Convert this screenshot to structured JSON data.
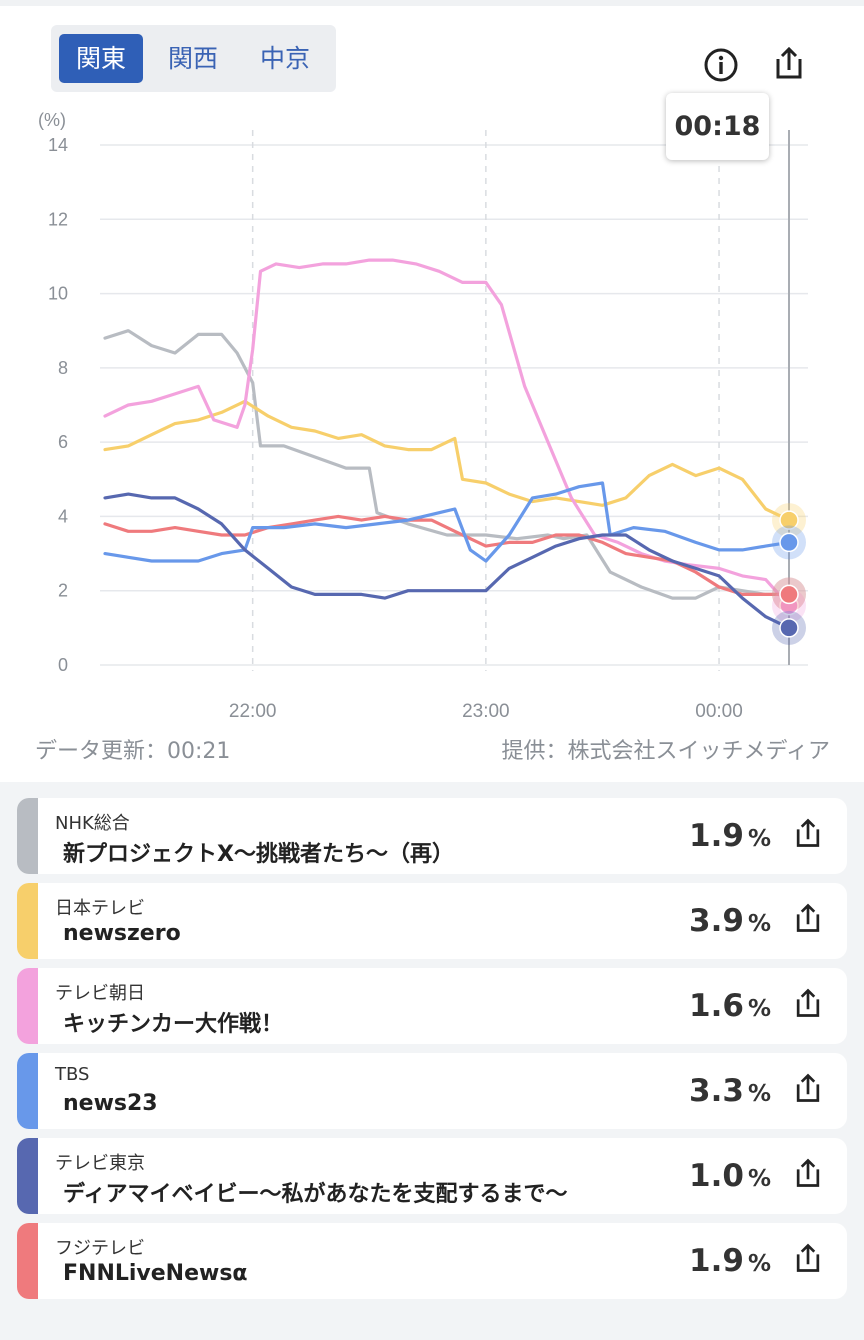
{
  "regions": {
    "items": [
      "関東",
      "関西",
      "中京"
    ],
    "active": 0
  },
  "tooltip": {
    "time": "00:18"
  },
  "icons": {
    "info": "info-icon",
    "share": "share-icon"
  },
  "footer": {
    "updated": "データ更新：00:21",
    "provider": "提供：株式会社スイッチメディア"
  },
  "chart_data": {
    "type": "line",
    "yunit": "(%)",
    "ylim": [
      0,
      14
    ],
    "yticks": [
      0,
      2,
      4,
      6,
      8,
      10,
      12,
      14
    ],
    "xlim": [
      "21:22",
      "00:18"
    ],
    "xticks": [
      "22:00",
      "23:00",
      "00:00"
    ],
    "grid": true,
    "cursor": "00:18",
    "series": [
      {
        "name": "NHK総合",
        "color": "#b8bcc2",
        "x": [
          "21:22",
          "21:28",
          "21:34",
          "21:40",
          "21:46",
          "21:52",
          "21:56",
          "22:00",
          "22:02",
          "22:08",
          "22:16",
          "22:24",
          "22:30",
          "22:32",
          "22:40",
          "22:50",
          "23:00",
          "23:08",
          "23:16",
          "23:20",
          "23:26",
          "23:32",
          "23:40",
          "23:48",
          "23:54",
          "00:00",
          "00:06",
          "00:12",
          "00:18"
        ],
        "values": [
          8.8,
          9.0,
          8.6,
          8.4,
          8.9,
          8.9,
          8.4,
          7.6,
          5.9,
          5.9,
          5.6,
          5.3,
          5.3,
          4.1,
          3.8,
          3.5,
          3.5,
          3.4,
          3.5,
          3.4,
          3.5,
          2.5,
          2.1,
          1.8,
          1.8,
          2.1,
          2.0,
          1.9,
          1.9
        ]
      },
      {
        "name": "日本テレビ",
        "color": "#f7cf6b",
        "x": [
          "21:22",
          "21:28",
          "21:34",
          "21:40",
          "21:46",
          "21:52",
          "21:58",
          "22:04",
          "22:10",
          "22:16",
          "22:22",
          "22:28",
          "22:34",
          "22:40",
          "22:46",
          "22:52",
          "22:54",
          "23:00",
          "23:06",
          "23:12",
          "23:18",
          "23:24",
          "23:30",
          "23:36",
          "23:42",
          "23:48",
          "23:54",
          "00:00",
          "00:06",
          "00:12",
          "00:18"
        ],
        "values": [
          5.8,
          5.9,
          6.2,
          6.5,
          6.6,
          6.8,
          7.1,
          6.7,
          6.4,
          6.3,
          6.1,
          6.2,
          5.9,
          5.8,
          5.8,
          6.1,
          5.0,
          4.9,
          4.6,
          4.4,
          4.5,
          4.4,
          4.3,
          4.5,
          5.1,
          5.4,
          5.1,
          5.3,
          5.0,
          4.2,
          3.9
        ]
      },
      {
        "name": "テレビ朝日",
        "color": "#f3a2dd",
        "x": [
          "21:22",
          "21:28",
          "21:34",
          "21:40",
          "21:46",
          "21:50",
          "21:56",
          "21:58",
          "22:00",
          "22:02",
          "22:06",
          "22:12",
          "22:18",
          "22:24",
          "22:30",
          "22:36",
          "22:42",
          "22:48",
          "22:54",
          "23:00",
          "23:04",
          "23:10",
          "23:16",
          "23:22",
          "23:28",
          "23:34",
          "23:40",
          "23:46",
          "23:52",
          "00:00",
          "00:06",
          "00:12",
          "00:18"
        ],
        "values": [
          6.7,
          7.0,
          7.1,
          7.3,
          7.5,
          6.6,
          6.4,
          7.0,
          8.5,
          10.6,
          10.8,
          10.7,
          10.8,
          10.8,
          10.9,
          10.9,
          10.8,
          10.6,
          10.3,
          10.3,
          9.7,
          7.5,
          6.0,
          4.5,
          3.5,
          3.3,
          3.0,
          2.8,
          2.7,
          2.6,
          2.4,
          2.3,
          1.6
        ]
      },
      {
        "name": "TBS",
        "color": "#6898ea",
        "x": [
          "21:22",
          "21:28",
          "21:34",
          "21:40",
          "21:46",
          "21:52",
          "21:58",
          "22:00",
          "22:08",
          "22:16",
          "22:24",
          "22:32",
          "22:40",
          "22:48",
          "22:52",
          "22:56",
          "23:00",
          "23:06",
          "23:12",
          "23:18",
          "23:24",
          "23:30",
          "23:32",
          "23:38",
          "23:46",
          "23:54",
          "00:00",
          "00:06",
          "00:12",
          "00:18"
        ],
        "values": [
          3.0,
          2.9,
          2.8,
          2.8,
          2.8,
          3.0,
          3.1,
          3.7,
          3.7,
          3.8,
          3.7,
          3.8,
          3.9,
          4.1,
          4.2,
          3.1,
          2.8,
          3.5,
          4.5,
          4.6,
          4.8,
          4.9,
          3.5,
          3.7,
          3.6,
          3.3,
          3.1,
          3.1,
          3.2,
          3.3
        ]
      },
      {
        "name": "テレビ東京",
        "color": "#5768b0",
        "x": [
          "21:22",
          "21:28",
          "21:34",
          "21:40",
          "21:46",
          "21:52",
          "21:58",
          "22:04",
          "22:10",
          "22:16",
          "22:22",
          "22:28",
          "22:34",
          "22:40",
          "22:46",
          "22:52",
          "23:00",
          "23:06",
          "23:12",
          "23:18",
          "23:24",
          "23:30",
          "23:36",
          "23:42",
          "23:48",
          "23:54",
          "00:00",
          "00:06",
          "00:12",
          "00:18"
        ],
        "values": [
          4.5,
          4.6,
          4.5,
          4.5,
          4.2,
          3.8,
          3.1,
          2.6,
          2.1,
          1.9,
          1.9,
          1.9,
          1.8,
          2.0,
          2.0,
          2.0,
          2.0,
          2.6,
          2.9,
          3.2,
          3.4,
          3.5,
          3.5,
          3.1,
          2.8,
          2.6,
          2.4,
          1.8,
          1.3,
          1.0
        ]
      },
      {
        "name": "フジテレビ",
        "color": "#ef7a7d",
        "x": [
          "21:22",
          "21:28",
          "21:34",
          "21:40",
          "21:46",
          "21:52",
          "21:58",
          "22:04",
          "22:10",
          "22:16",
          "22:22",
          "22:28",
          "22:34",
          "22:40",
          "22:46",
          "22:52",
          "23:00",
          "23:06",
          "23:12",
          "23:18",
          "23:24",
          "23:30",
          "23:36",
          "23:42",
          "23:48",
          "23:54",
          "00:00",
          "00:06",
          "00:12",
          "00:18"
        ],
        "values": [
          3.8,
          3.6,
          3.6,
          3.7,
          3.6,
          3.5,
          3.5,
          3.7,
          3.8,
          3.9,
          4.0,
          3.9,
          4.0,
          3.9,
          3.9,
          3.6,
          3.2,
          3.3,
          3.3,
          3.5,
          3.5,
          3.3,
          3.0,
          2.9,
          2.8,
          2.5,
          2.1,
          1.9,
          1.9,
          1.9
        ]
      }
    ]
  },
  "list": [
    {
      "channel": "NHK総合",
      "program": "新プロジェクトX～挑戦者たち～（再）",
      "rating": "1.9",
      "unit": "%",
      "color": "#b8bcc2"
    },
    {
      "channel": "日本テレビ",
      "program": "newszero",
      "rating": "3.9",
      "unit": "%",
      "color": "#f7cf6b"
    },
    {
      "channel": "テレビ朝日",
      "program": "キッチンカー大作戦！",
      "rating": "1.6",
      "unit": "%",
      "color": "#f3a2dd"
    },
    {
      "channel": "TBS",
      "program": "news23",
      "rating": "3.3",
      "unit": "%",
      "color": "#6898ea"
    },
    {
      "channel": "テレビ東京",
      "program": "ディアマイベイビー～私があなたを支配するまで～",
      "rating": "1.0",
      "unit": "%",
      "color": "#5768b0"
    },
    {
      "channel": "フジテレビ",
      "program": "FNNLiveNewsα",
      "rating": "1.9",
      "unit": "%",
      "color": "#ef7a7d"
    }
  ]
}
